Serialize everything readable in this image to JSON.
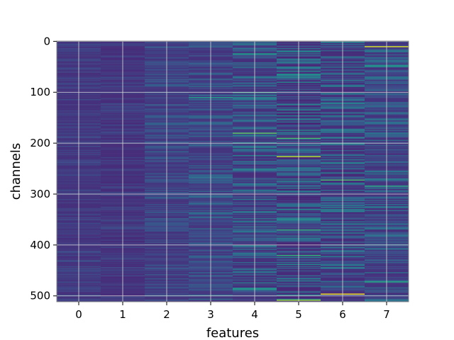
{
  "chart_data": {
    "type": "heatmap",
    "title": "",
    "xlabel": "features",
    "ylabel": "channels",
    "x_ticks": [
      "0",
      "1",
      "2",
      "3",
      "4",
      "5",
      "6",
      "7"
    ],
    "y_ticks": [
      "0",
      "100",
      "200",
      "300",
      "400",
      "500"
    ],
    "n_features": 8,
    "n_channels": 512,
    "xlim": [
      -0.5,
      7.5
    ],
    "ylim": [
      511.5,
      -0.5
    ],
    "grid": true,
    "colormap": "viridis",
    "column_spread": [
      0.1,
      0.1,
      0.16,
      0.22,
      0.32,
      0.38,
      0.34,
      0.28
    ],
    "column_base": [
      0.15,
      0.14,
      0.17,
      0.18,
      0.18,
      0.16,
      0.17,
      0.18
    ],
    "highlights": [
      {
        "feature": 7,
        "channel": 10,
        "value": 0.95
      },
      {
        "feature": 4,
        "channel": 24,
        "value": 0.55
      },
      {
        "feature": 7,
        "channel": 48,
        "value": 0.55
      },
      {
        "feature": 4,
        "channel": 100,
        "value": 0.6
      },
      {
        "feature": 3,
        "channel": 110,
        "value": 0.55
      },
      {
        "feature": 5,
        "channel": 190,
        "value": 0.7
      },
      {
        "feature": 4,
        "channel": 180,
        "value": 0.75
      },
      {
        "feature": 5,
        "channel": 226,
        "value": 0.9
      },
      {
        "feature": 6,
        "channel": 273,
        "value": 0.7
      },
      {
        "feature": 7,
        "channel": 285,
        "value": 0.6
      },
      {
        "feature": 5,
        "channel": 370,
        "value": 0.65
      },
      {
        "feature": 5,
        "channel": 420,
        "value": 0.65
      },
      {
        "feature": 7,
        "channel": 473,
        "value": 0.6
      },
      {
        "feature": 4,
        "channel": 487,
        "value": 0.55
      },
      {
        "feature": 6,
        "channel": 497,
        "value": 1.0
      },
      {
        "feature": 5,
        "channel": 509,
        "value": 0.85
      }
    ]
  }
}
